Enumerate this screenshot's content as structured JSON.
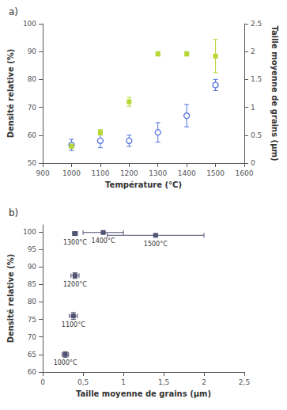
{
  "chart_data": [
    {
      "type": "scatter",
      "title": "a)",
      "xlabel": "Température (°C)",
      "ylabel": "Densité relative (%)",
      "y2label": "Taille moyenne de grains (µm)",
      "x": [
        1000,
        1100,
        1200,
        1300,
        1400,
        1500
      ],
      "xlim": [
        900,
        1600
      ],
      "xticks": [
        900,
        1000,
        1100,
        1200,
        1300,
        1400,
        1500,
        1600
      ],
      "ylim": [
        50,
        100
      ],
      "yticks": [
        50,
        60,
        70,
        80,
        90,
        100
      ],
      "y2lim": [
        0,
        2.5
      ],
      "y2ticks": [
        0,
        0.5,
        1,
        1.5,
        2,
        2.5
      ],
      "grid": false,
      "series": [
        {
          "values": [
            56.5,
            58.0,
            58.0,
            61.0,
            67.0,
            78.0
          ],
          "errors": [
            2.0,
            2.5,
            2.0,
            3.5,
            4.0,
            2.0
          ],
          "marker": "open_circle"
        },
        {
          "values": [
            0.3,
            0.55,
            1.1,
            1.96,
            1.96,
            1.92
          ],
          "errors": [
            0.04,
            0.05,
            0.08,
            0.04,
            0.04,
            0.3
          ],
          "axis": "y2",
          "marker": "square"
        }
      ]
    },
    {
      "type": "scatter",
      "title": "b)",
      "xlabel": "Taille moyenne de grains (µm)",
      "ylabel": "Densité relative (%)",
      "xlim": [
        0,
        2.5
      ],
      "xticks": [
        0,
        {
          "value": 0.5,
          "label": "0,5"
        },
        1,
        {
          "value": 1.5,
          "label": "1,5"
        },
        2,
        {
          "value": 2.5,
          "label": "2,5"
        }
      ],
      "ylim": [
        60,
        102
      ],
      "yticks": [
        60,
        65,
        70,
        75,
        80,
        85,
        90,
        95,
        100
      ],
      "grid": false,
      "series": [
        {
          "x": [
            0.28,
            0.38,
            0.4,
            0.4,
            0.75,
            1.4
          ],
          "x_errors": [
            0.04,
            0.05,
            0.05,
            0.03,
            0.25,
            0.6
          ],
          "values": [
            65.0,
            76.0,
            87.5,
            99.5,
            99.8,
            99.0
          ],
          "errors": [
            0.8,
            1.0,
            0.8,
            0.4,
            0.4,
            0.4
          ],
          "labels": [
            "1000°C",
            "1100°C",
            "1200°C",
            "1300°C",
            "1400°C",
            "1500°C"
          ],
          "marker": "square"
        }
      ]
    }
  ]
}
